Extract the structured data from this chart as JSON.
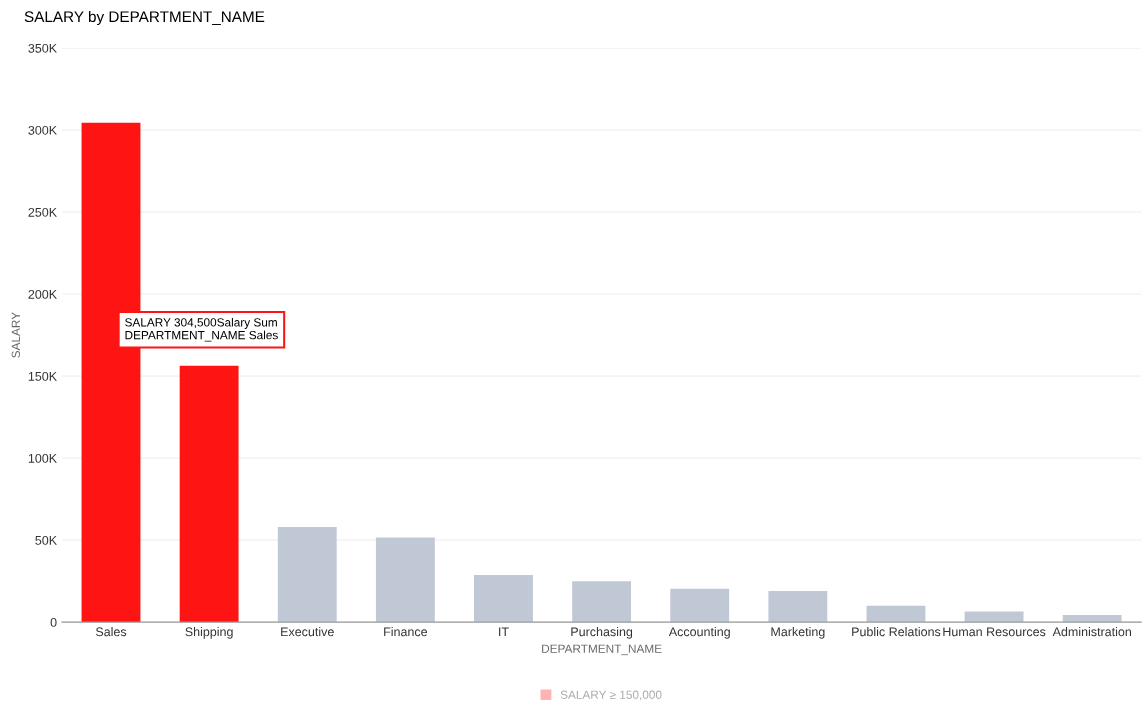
{
  "chart_data": {
    "type": "bar",
    "title": "SALARY by DEPARTMENT_NAME",
    "xlabel": "DEPARTMENT_NAME",
    "ylabel": "SALARY",
    "categories": [
      "Sales",
      "Shipping",
      "Executive",
      "Finance",
      "IT",
      "Purchasing",
      "Accounting",
      "Marketing",
      "Public Relations",
      "Human Resources",
      "Administration"
    ],
    "series": [
      {
        "name": "SALARY ≥ 150,000",
        "color": "#ffb3b3",
        "values": [
          304500,
          156400,
          58000,
          51600,
          28800,
          24900,
          20300,
          19000,
          10000,
          6500,
          4400
        ],
        "colors": [
          "#ff1414",
          "#ff1414",
          "#c0c8d6",
          "#c0c8d6",
          "#c0c8d6",
          "#c0c8d6",
          "#c0c8d6",
          "#c0c8d6",
          "#c0c8d6",
          "#c0c8d6",
          "#c0c8d6"
        ]
      }
    ],
    "ylim": [
      0,
      350000
    ],
    "yticks": [
      {
        "value": 0,
        "label": "0"
      },
      {
        "value": 50000,
        "label": "50K"
      },
      {
        "value": 100000,
        "label": "100K"
      },
      {
        "value": 150000,
        "label": "150K"
      },
      {
        "value": 200000,
        "label": "200K"
      },
      {
        "value": 250000,
        "label": "250K"
      },
      {
        "value": 300000,
        "label": "300K"
      },
      {
        "value": 350000,
        "label": "350K"
      }
    ],
    "grid": "y",
    "legend": "bottom",
    "annotations": [
      "SALARY 304,500Salary Sum\nDEPARTMENT_NAME Sales"
    ]
  }
}
